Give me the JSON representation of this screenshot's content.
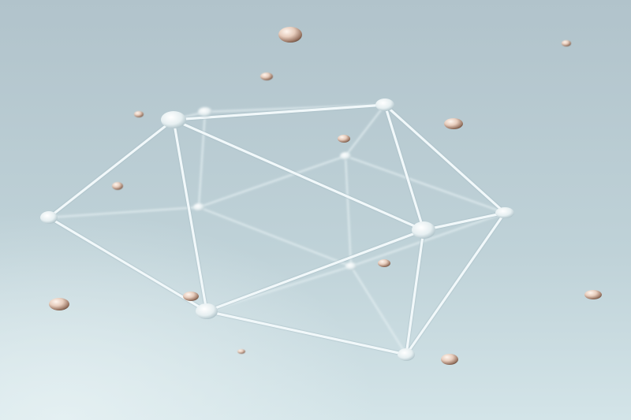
{
  "scene": {
    "subject": "wireframe-polyhedron",
    "colors": {
      "background_top": "#b2c4cc",
      "background_bottom": "#cfe1e6",
      "edge": "#eef6f8",
      "edge_shadow": "#9fb5bd",
      "node": "#f4f9fa",
      "bead_light": "#f3e2d6",
      "bead_dark": "#8a6a58"
    }
  }
}
